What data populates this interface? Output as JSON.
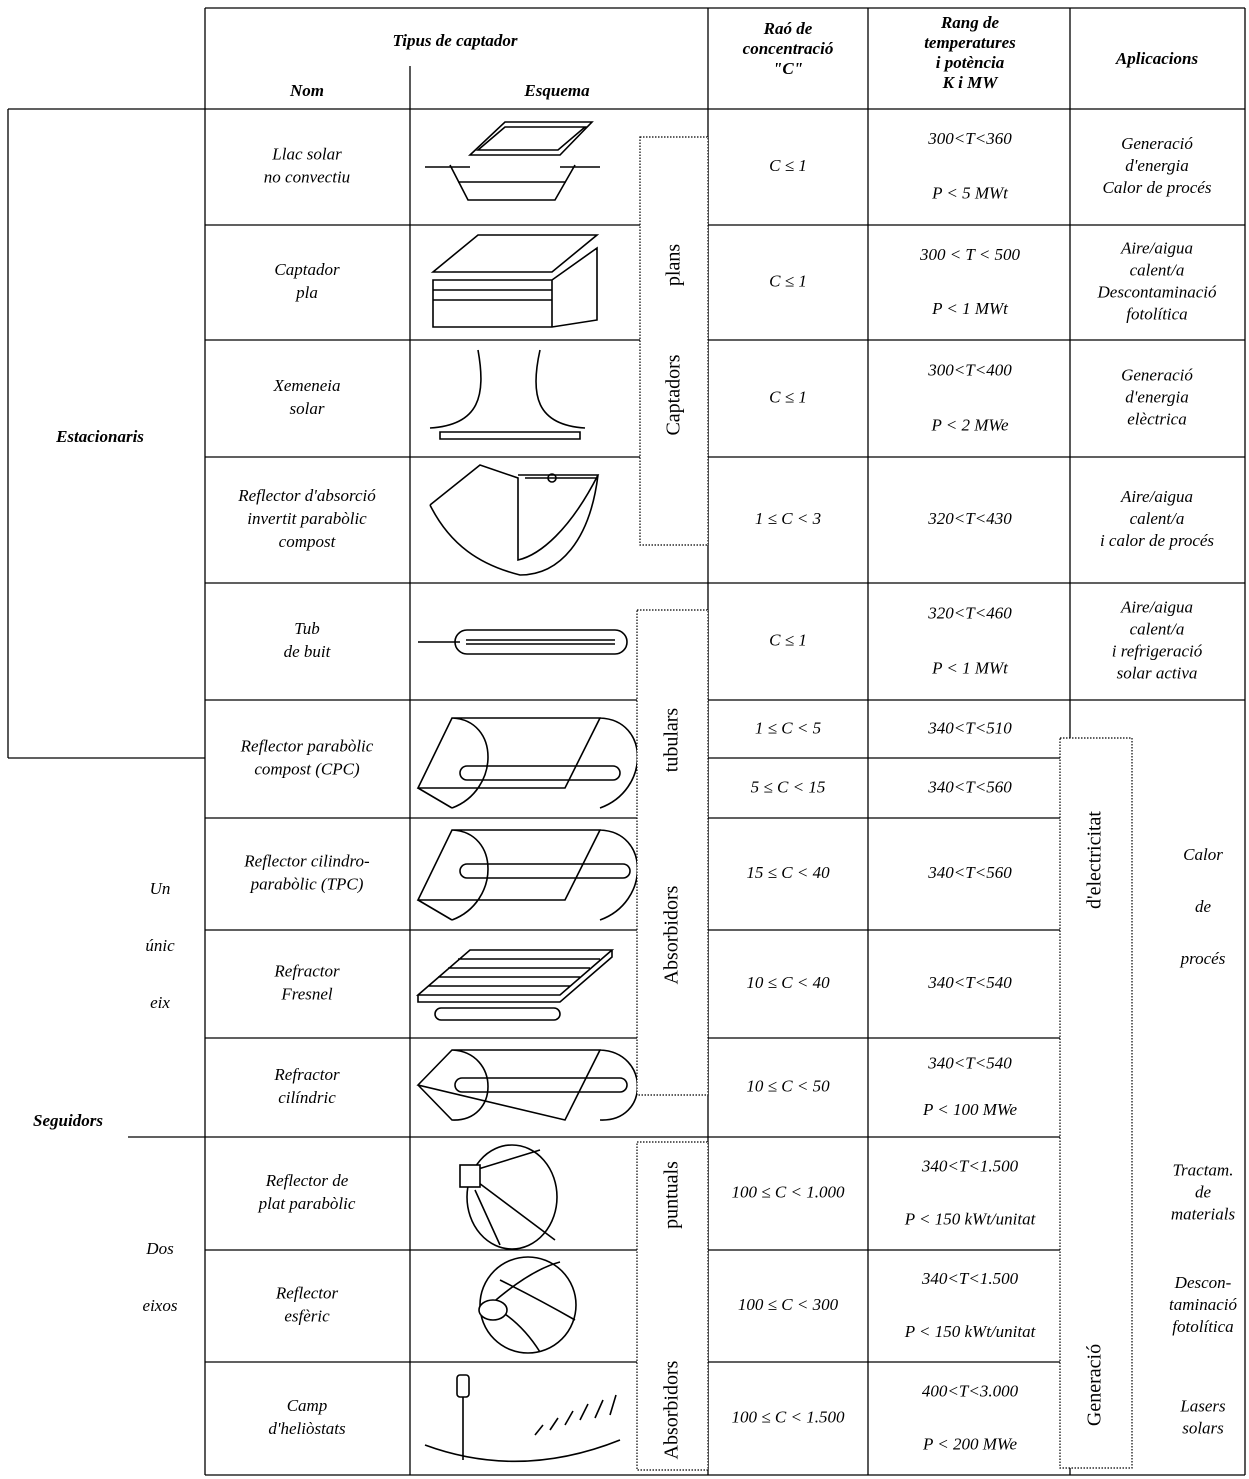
{
  "header": {
    "tipus": "Tipus de captador",
    "nom": "Nom",
    "esquema": "Esquema",
    "rao": [
      "Raó de",
      "concentració",
      "\"C\""
    ],
    "rang": [
      "Rang de",
      "temperatures",
      "i potència",
      "K i MW"
    ],
    "aplicacions": "Aplicacions"
  },
  "groups": {
    "estacionaris": "Estacionaris",
    "seguidors": "Seguidors",
    "un_unic_eix": [
      "Un",
      "únic",
      "eix"
    ],
    "dos_eixos": [
      "Dos",
      "eixos"
    ]
  },
  "vertical_labels": {
    "captadors_plans": [
      "Captadors",
      "plans"
    ],
    "absorbidors_tubulars": [
      "Absorbidors",
      "tubulars"
    ],
    "absorbidors_puntuals": [
      "Absorbidors",
      "puntuals"
    ],
    "generacio": [
      "Generació",
      "d'electricitat"
    ]
  },
  "rows": [
    {
      "name": [
        "Llac solar",
        "no convectiu"
      ],
      "c": [
        "C ≤ 1"
      ],
      "t": [
        "300<T<360"
      ],
      "p": "P < 5 MWt",
      "apps": [
        "Generació",
        "d'energia",
        "Calor de procés"
      ]
    },
    {
      "name": [
        "Captador",
        "pla"
      ],
      "c": [
        "C ≤ 1"
      ],
      "t": [
        "300 < T < 500"
      ],
      "p": "P < 1 MWt",
      "apps": [
        "Aire/aigua",
        "calent/a",
        "Descontaminació",
        "fotolítica"
      ]
    },
    {
      "name": [
        "Xemeneia",
        "solar"
      ],
      "c": [
        "C ≤ 1"
      ],
      "t": [
        "300<T<400"
      ],
      "p": "P < 2 MWe",
      "apps": [
        "Generació",
        "d'energia",
        "elèctrica"
      ]
    },
    {
      "name": [
        "Reflector d'absorció",
        "invertit parabòlic",
        "compost"
      ],
      "c": [
        "1 ≤ C < 3"
      ],
      "t": [
        "320<T<430"
      ],
      "apps": [
        "Aire/aigua",
        "calent/a",
        "i calor de procés"
      ]
    },
    {
      "name": [
        "Tub",
        "de buit"
      ],
      "c": [
        "C ≤ 1"
      ],
      "t": [
        "320<T<460"
      ],
      "p": "P < 1 MWt",
      "apps": [
        "Aire/aigua",
        "calent/a",
        "i refrigeració",
        "solar activa"
      ]
    },
    {
      "name": [
        "Reflector parabòlic",
        "compost (CPC)"
      ],
      "c": [
        "1 ≤ C < 5",
        "5 ≤ C < 15"
      ],
      "t": [
        "340<T<510",
        "340<T<560"
      ]
    },
    {
      "name": [
        "Reflector cilindro-",
        "parabòlic (TPC)"
      ],
      "c": [
        "15 ≤ C < 40"
      ],
      "t": [
        "340<T<560"
      ]
    },
    {
      "name": [
        "Refractor",
        "Fresnel"
      ],
      "c": [
        "10 ≤ C < 40"
      ],
      "t": [
        "340<T<540"
      ]
    },
    {
      "name": [
        "Refractor",
        "cilíndric"
      ],
      "c": [
        "10 ≤ C < 50"
      ],
      "t": [
        "340<T<540"
      ],
      "p": "P < 100 MWe"
    },
    {
      "name": [
        "Reflector de",
        "plat parabòlic"
      ],
      "c": [
        "100 ≤ C < 1.000"
      ],
      "t": [
        "340<T<1.500"
      ],
      "p": "P < 150 kWt/unitat",
      "apps": [
        "Tractam.",
        "de",
        "materials"
      ]
    },
    {
      "name": [
        "Reflector",
        "esfèric"
      ],
      "c": [
        "100 ≤ C < 300"
      ],
      "t": [
        "340<T<1.500"
      ],
      "p": "P < 150 kWt/unitat",
      "apps": [
        "Descon-",
        "taminació",
        "fotolítica"
      ]
    },
    {
      "name": [
        "Camp",
        "d'heliòstats"
      ],
      "c": [
        "100 ≤ C < 1.500"
      ],
      "t": [
        "400<T<3.000"
      ],
      "p": "P < 200 MWe",
      "apps": [
        "Lasers",
        "solars"
      ]
    }
  ],
  "calor_de_proces": [
    "Calor",
    "de",
    "procés"
  ]
}
